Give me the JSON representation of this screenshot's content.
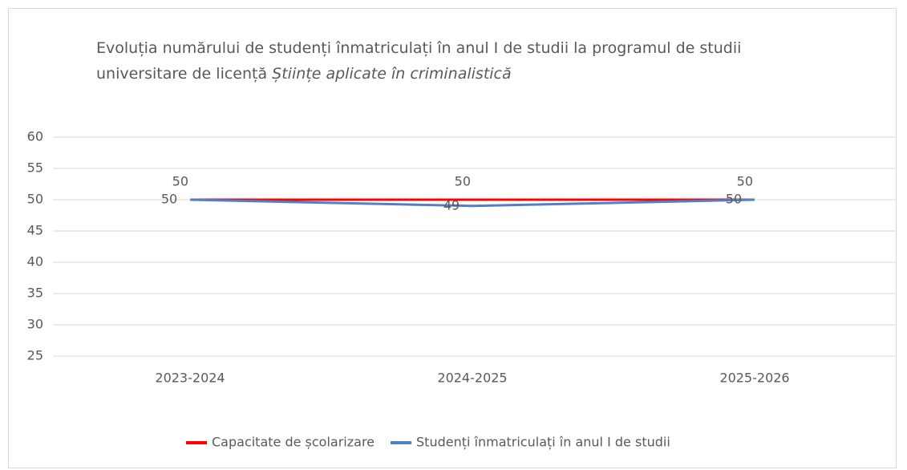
{
  "chart_data": {
    "type": "line",
    "title": "Evoluția numărului de studenți înmatriculați în anul I de studii la programul de studii universitare de licență",
    "title_emphasis": "Științe aplicate în criminalistică",
    "categories": [
      "2023-2024",
      "2024-2025",
      "2025-2026"
    ],
    "series": [
      {
        "name": "Capacitate de școlarizare",
        "color": "#ff0000",
        "values": [
          50,
          50,
          50
        ]
      },
      {
        "name": "Studenți înmatriculați în anul I de studii",
        "color": "#4f81c7",
        "values": [
          50,
          49,
          50
        ]
      }
    ],
    "ylim": [
      25,
      60
    ],
    "yticks": [
      25,
      30,
      35,
      40,
      45,
      50,
      55,
      60
    ],
    "grid": true,
    "legend": "bottom"
  }
}
